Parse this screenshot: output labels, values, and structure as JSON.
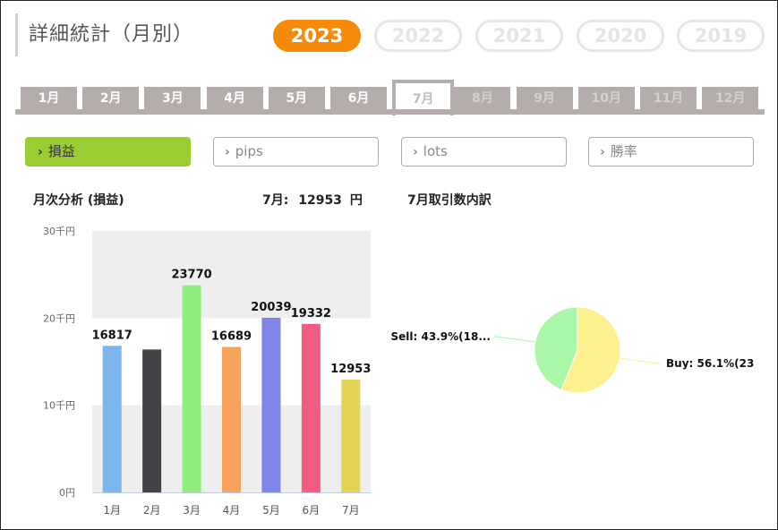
{
  "title": "詳細統計（月別）",
  "years": [
    {
      "label": "2023",
      "active": true
    },
    {
      "label": "2022",
      "active": false
    },
    {
      "label": "2021",
      "active": false
    },
    {
      "label": "2020",
      "active": false
    },
    {
      "label": "2019",
      "active": false
    }
  ],
  "months": [
    {
      "label": "1月",
      "state": "enabled"
    },
    {
      "label": "2月",
      "state": "enabled"
    },
    {
      "label": "3月",
      "state": "enabled"
    },
    {
      "label": "4月",
      "state": "enabled"
    },
    {
      "label": "5月",
      "state": "enabled"
    },
    {
      "label": "6月",
      "state": "enabled"
    },
    {
      "label": "7月",
      "state": "active"
    },
    {
      "label": "8月",
      "state": "disabled"
    },
    {
      "label": "9月",
      "state": "disabled"
    },
    {
      "label": "10月",
      "state": "disabled"
    },
    {
      "label": "11月",
      "state": "disabled"
    },
    {
      "label": "12月",
      "state": "disabled"
    }
  ],
  "metrics": [
    {
      "label": "損益",
      "active": true
    },
    {
      "label": "pips",
      "active": false
    },
    {
      "label": "lots",
      "active": false
    },
    {
      "label": "勝率",
      "active": false
    }
  ],
  "monthly_section": {
    "title": "月次分析 (損益)",
    "summary_prefix": "7月:",
    "summary_value": "12953",
    "summary_unit": "円"
  },
  "pie_section": {
    "title": "7月取引数内訳"
  },
  "chart_data": [
    {
      "type": "bar",
      "categories": [
        "1月",
        "2月",
        "3月",
        "4月",
        "5月",
        "6月",
        "7月"
      ],
      "values": [
        16817,
        16400,
        23770,
        16689,
        20039,
        19332,
        12953
      ],
      "data_labels": [
        "16817",
        "",
        "23770",
        "16689",
        "20039",
        "19332",
        "12953"
      ],
      "colors": [
        "#7cb5ec",
        "#434348",
        "#90ed7d",
        "#f7a35c",
        "#8085e9",
        "#f15c80",
        "#e4d354"
      ],
      "ylim": [
        0,
        30000
      ],
      "yticks": [
        {
          "value": 0,
          "label": "0円"
        },
        {
          "value": 10000,
          "label": "10千円"
        },
        {
          "value": 20000,
          "label": "20千円"
        },
        {
          "value": 30000,
          "label": "30千円"
        }
      ],
      "band_color": "#eeeeee",
      "grid": false
    },
    {
      "type": "pie",
      "slices": [
        {
          "name": "Buy",
          "value": 56.1,
          "label": "Buy: 56.1%(23",
          "color": "#fdf08f"
        },
        {
          "name": "Sell",
          "value": 43.9,
          "label": "Sell: 43.9%(18...",
          "color": "#aaf7a7"
        }
      ]
    }
  ]
}
